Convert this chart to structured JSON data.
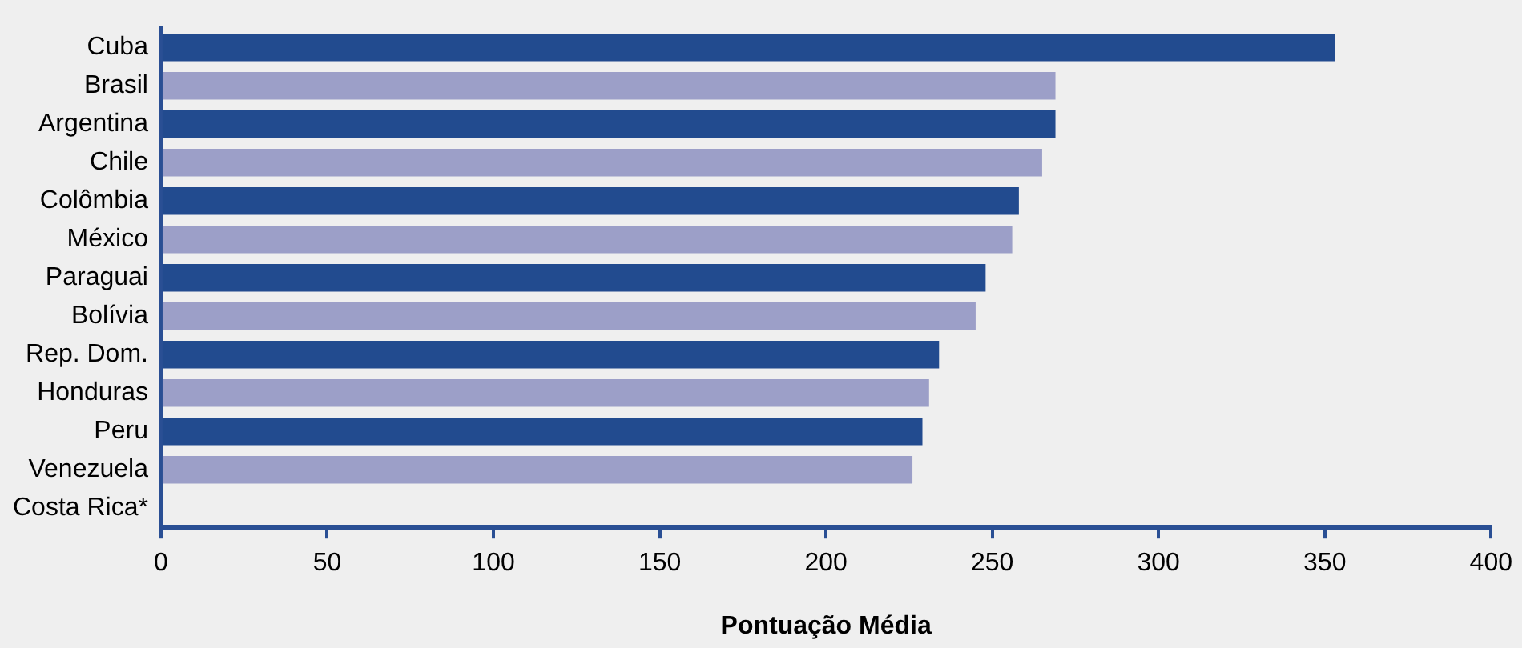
{
  "chart_data": {
    "type": "bar",
    "orientation": "horizontal",
    "xlabel": "Pontuação Média",
    "categories": [
      "Cuba",
      "Brasil",
      "Argentina",
      "Chile",
      "Colômbia",
      "México",
      "Paraguai",
      "Bolívia",
      "Rep. Dom.",
      "Honduras",
      "Peru",
      "Venezuela",
      "Costa Rica*"
    ],
    "values": [
      353,
      269,
      269,
      265,
      258,
      256,
      248,
      245,
      234,
      231,
      229,
      226,
      null
    ],
    "colors": [
      "#224b8f",
      "#9c9fc8",
      "#224b8f",
      "#9c9fc8",
      "#224b8f",
      "#9c9fc8",
      "#224b8f",
      "#9c9fc8",
      "#224b8f",
      "#9c9fc8",
      "#224b8f",
      "#9c9fc8",
      "#224b8f"
    ],
    "xlim": [
      0,
      400
    ],
    "xticks": [
      0,
      50,
      100,
      150,
      200,
      250,
      300,
      350,
      400
    ],
    "grid": false,
    "legend": false
  }
}
